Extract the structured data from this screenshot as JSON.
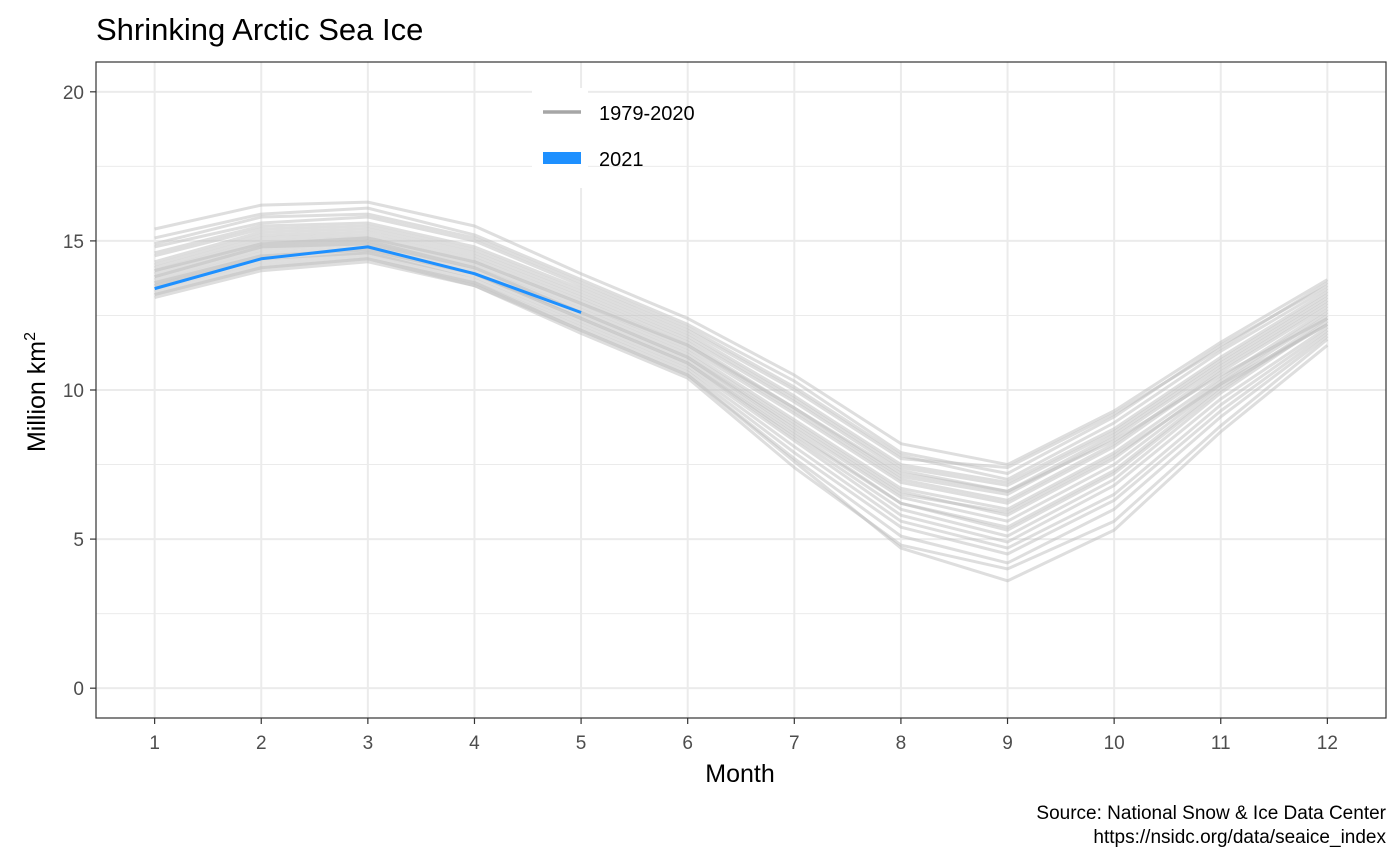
{
  "chart_data": {
    "type": "line",
    "title": "Shrinking Arctic Sea Ice",
    "xlabel": "Month",
    "ylabel": "Million km",
    "ylabel_superscript": "2",
    "caption_line1": "Source: National Snow & Ice Data Center",
    "caption_line2": "https://nsidc.org/data/seaice_index",
    "xlim": [
      0.45,
      12.55
    ],
    "ylim": [
      -1,
      21
    ],
    "x_ticks": [
      1,
      2,
      3,
      4,
      5,
      6,
      7,
      8,
      9,
      10,
      11,
      12
    ],
    "y_ticks": [
      0,
      5,
      10,
      15,
      20
    ],
    "grid": true,
    "legend_position": "top-center",
    "legend": [
      {
        "label": "1979-2020",
        "color": "#a6a6a6"
      },
      {
        "label": "2021",
        "color": "#1e90ff"
      }
    ],
    "colors": {
      "historical": "#bebebe",
      "current": "#1e90ff",
      "grid": "#ebebeb",
      "panel_border": "#333333"
    },
    "historical_series": [
      {
        "values": [
          15.4,
          16.2,
          16.3,
          15.5,
          13.9,
          12.4,
          10.5,
          8.2,
          7.5,
          9.3,
          11.6,
          13.7
        ]
      },
      {
        "values": [
          15.1,
          15.9,
          16.1,
          15.2,
          13.7,
          12.2,
          10.3,
          7.9,
          7.2,
          9.1,
          11.5,
          13.5
        ]
      },
      {
        "values": [
          14.9,
          15.8,
          15.9,
          15.1,
          13.6,
          12.1,
          10.1,
          7.8,
          7.0,
          8.9,
          11.3,
          13.4
        ]
      },
      {
        "values": [
          14.8,
          15.6,
          15.8,
          15.0,
          13.5,
          12.0,
          10.0,
          7.7,
          7.4,
          9.2,
          11.4,
          13.6
        ]
      },
      {
        "values": [
          14.6,
          15.5,
          15.6,
          14.8,
          13.4,
          11.9,
          9.8,
          7.5,
          6.9,
          8.7,
          11.1,
          13.3
        ]
      },
      {
        "values": [
          14.5,
          15.4,
          15.5,
          14.7,
          13.3,
          11.8,
          9.7,
          7.4,
          6.8,
          8.6,
          11.0,
          13.2
        ]
      },
      {
        "values": [
          14.3,
          15.3,
          15.4,
          14.6,
          13.2,
          11.7,
          9.6,
          7.3,
          6.6,
          8.5,
          10.9,
          13.1
        ]
      },
      {
        "values": [
          14.2,
          15.2,
          15.3,
          14.5,
          13.1,
          11.6,
          9.4,
          7.1,
          6.5,
          8.4,
          10.8,
          13.0
        ]
      },
      {
        "values": [
          14.1,
          15.1,
          15.2,
          14.4,
          13.0,
          11.5,
          9.3,
          7.0,
          6.3,
          8.2,
          10.7,
          12.9
        ]
      },
      {
        "values": [
          14.0,
          15.0,
          15.1,
          14.3,
          12.9,
          11.4,
          9.2,
          6.9,
          6.2,
          8.1,
          10.6,
          12.8
        ]
      },
      {
        "values": [
          13.9,
          14.9,
          15.0,
          14.2,
          12.8,
          11.3,
          9.0,
          6.7,
          6.0,
          7.9,
          10.4,
          12.7
        ]
      },
      {
        "values": [
          13.8,
          14.8,
          14.9,
          14.1,
          12.7,
          11.2,
          8.9,
          6.6,
          5.8,
          7.7,
          10.3,
          12.6
        ]
      },
      {
        "values": [
          13.7,
          14.7,
          14.9,
          14.0,
          12.6,
          11.1,
          8.7,
          6.4,
          5.6,
          7.5,
          10.2,
          12.5
        ]
      },
      {
        "values": [
          13.6,
          14.6,
          14.8,
          13.9,
          12.5,
          11.0,
          8.6,
          6.2,
          5.3,
          7.2,
          10.0,
          12.4
        ]
      },
      {
        "values": [
          13.6,
          14.5,
          14.7,
          13.9,
          12.4,
          10.9,
          8.4,
          6.0,
          5.1,
          7.0,
          9.9,
          12.3
        ]
      },
      {
        "values": [
          13.5,
          14.4,
          14.6,
          13.8,
          12.3,
          10.8,
          8.3,
          5.8,
          4.9,
          6.8,
          9.7,
          12.1
        ]
      },
      {
        "values": [
          13.4,
          14.3,
          14.6,
          13.7,
          12.2,
          10.7,
          8.1,
          5.6,
          4.7,
          6.5,
          9.5,
          12.0
        ]
      },
      {
        "values": [
          13.3,
          14.2,
          14.5,
          13.6,
          12.1,
          10.6,
          7.9,
          5.4,
          4.5,
          6.3,
          9.3,
          11.9
        ]
      },
      {
        "values": [
          13.2,
          14.1,
          14.4,
          13.6,
          12.0,
          10.5,
          7.7,
          5.1,
          4.2,
          6.0,
          9.1,
          11.8
        ]
      },
      {
        "values": [
          13.1,
          14.0,
          14.3,
          13.5,
          11.9,
          10.4,
          7.4,
          4.8,
          4.0,
          5.6,
          8.8,
          11.7
        ]
      },
      {
        "values": [
          13.2,
          14.1,
          14.4,
          13.5,
          12.0,
          10.5,
          7.6,
          4.7,
          3.6,
          5.3,
          8.6,
          11.5
        ]
      },
      {
        "values": [
          13.5,
          14.5,
          14.7,
          13.9,
          12.4,
          10.9,
          8.5,
          6.2,
          5.4,
          7.3,
          10.1,
          12.2
        ]
      },
      {
        "values": [
          14.0,
          14.9,
          15.1,
          14.3,
          12.9,
          11.5,
          9.4,
          7.2,
          6.6,
          8.3,
          10.5,
          12.4
        ]
      },
      {
        "values": [
          13.8,
          14.8,
          15.0,
          14.1,
          12.6,
          11.1,
          8.8,
          6.5,
          5.9,
          7.8,
          10.2,
          12.2
        ]
      }
    ],
    "series": [
      {
        "name": "2021",
        "x": [
          1,
          2,
          3,
          4,
          5
        ],
        "values": [
          13.4,
          14.4,
          14.8,
          13.9,
          12.6
        ]
      }
    ]
  }
}
